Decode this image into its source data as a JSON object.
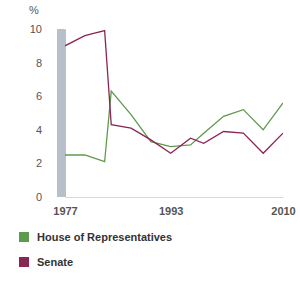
{
  "chart_data": {
    "type": "line",
    "y_label": "%",
    "x": [
      1977,
      1980,
      1983,
      1984,
      1987,
      1990,
      1993,
      1996,
      1998,
      2001,
      2004,
      2007,
      2010
    ],
    "series": [
      {
        "name": "House of Representatives",
        "color": "#5e9a4c",
        "values": [
          2.5,
          2.5,
          2.1,
          6.3,
          4.9,
          3.3,
          3.0,
          3.1,
          3.8,
          4.8,
          5.2,
          4.0,
          5.6
        ]
      },
      {
        "name": "Senate",
        "color": "#8c2455",
        "values": [
          9.0,
          9.6,
          9.9,
          4.3,
          4.1,
          3.4,
          2.6,
          3.5,
          3.2,
          3.9,
          3.8,
          2.6,
          3.8
        ]
      }
    ],
    "xlim": [
      1977,
      2010
    ],
    "xticks": [
      1977,
      1993,
      2010
    ],
    "ylim": [
      0,
      10
    ],
    "yticks": [
      0,
      2,
      4,
      6,
      8,
      10
    ],
    "grid": false
  }
}
